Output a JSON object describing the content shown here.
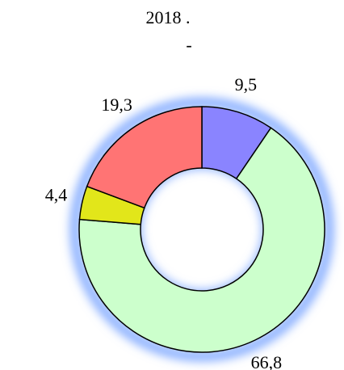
{
  "chart_data": {
    "type": "donut",
    "title": "2018   .",
    "subtitle": "-",
    "values": [
      9.5,
      66.8,
      4.4,
      19.3
    ],
    "value_labels": [
      "9,5",
      "66,8",
      "4,4",
      "19,3"
    ],
    "colors": [
      "#8a84ff",
      "#ccffcc",
      "#e2e61a",
      "#ff7474"
    ]
  }
}
